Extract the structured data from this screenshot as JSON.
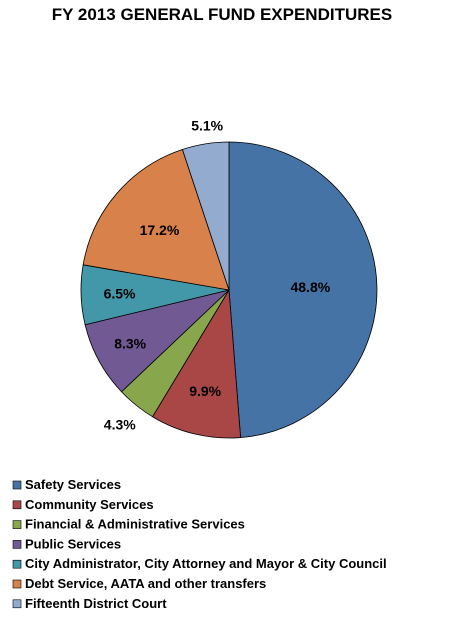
{
  "chart_data": {
    "type": "pie",
    "title": "FY 2013 GENERAL FUND EXPENDITURES",
    "categories": [
      "Safety Services",
      "Community Services",
      "Financial & Administrative Services",
      "Public Services",
      "City Administrator, City Attorney and Mayor & City Council",
      "Debt Service, AATA and other transfers",
      "Fifteenth District Court"
    ],
    "values": [
      48.8,
      9.9,
      4.3,
      8.3,
      6.5,
      17.2,
      5.1
    ],
    "value_labels": [
      "48.8%",
      "9.9%",
      "4.3%",
      "8.3%",
      "6.5%",
      "17.2%",
      "5.1%"
    ],
    "colors": [
      "#4673a6",
      "#a94646",
      "#88a64b",
      "#715993",
      "#4297a8",
      "#d9814a",
      "#94abd0"
    ],
    "start_angle_deg": 0,
    "direction": "clockwise",
    "legend_position": "bottom-left"
  }
}
